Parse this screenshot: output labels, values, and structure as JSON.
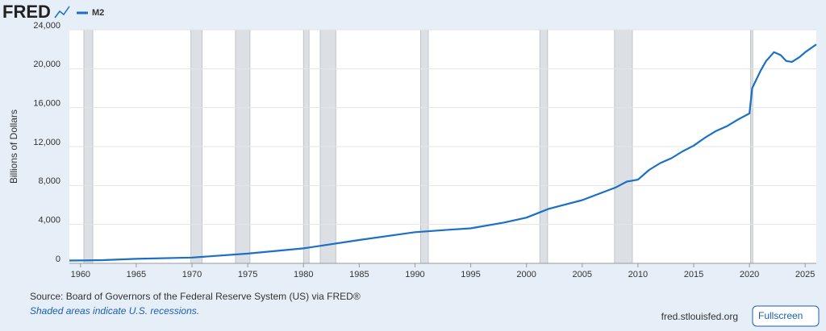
{
  "chart_data": {
    "type": "line",
    "logo": "FRED",
    "ylabel": "Billions of Dollars",
    "source": "Source: Board of Governors of the Federal Reserve System (US) via FRED®",
    "note": "Shaded areas indicate U.S. recessions.",
    "site": "fred.stlouisfed.org",
    "button": "Fullscreen",
    "x": [
      1959,
      1960,
      1962,
      1965,
      1970,
      1975,
      1980,
      1985,
      1990,
      1993,
      1995,
      1998,
      2000,
      2002,
      2005,
      2008,
      2009,
      2010,
      2011,
      2012,
      2013,
      2014,
      2015,
      2016,
      2017,
      2018,
      2019,
      2020,
      2020.25,
      2021,
      2021.5,
      2022.2,
      2022.8,
      2023.3,
      2023.8,
      2024.5,
      2025,
      2026
    ],
    "series": [
      {
        "name": "M2",
        "color": "#1a6fc7",
        "values": [
          290,
          300,
          335,
          460,
          600,
          1000,
          1540,
          2400,
          3200,
          3450,
          3600,
          4200,
          4700,
          5600,
          6500,
          7800,
          8400,
          8600,
          9600,
          10300,
          10800,
          11500,
          12100,
          12900,
          13600,
          14100,
          14800,
          15400,
          18000,
          19800,
          20800,
          21700,
          21400,
          20800,
          20700,
          21200,
          21700,
          22500
        ]
      }
    ],
    "recessions": [
      [
        1960.3,
        1961.1
      ],
      [
        1969.9,
        1970.9
      ],
      [
        1973.9,
        1975.2
      ],
      [
        1980.0,
        1980.5
      ],
      [
        1981.5,
        1982.9
      ],
      [
        1990.5,
        1991.2
      ],
      [
        2001.2,
        2001.9
      ],
      [
        2007.9,
        2009.5
      ],
      [
        2020.1,
        2020.3
      ]
    ],
    "xlim": [
      1959,
      2026
    ],
    "xticks": [
      1960,
      1965,
      1970,
      1975,
      1980,
      1985,
      1990,
      1995,
      2000,
      2005,
      2010,
      2015,
      2020,
      2025
    ],
    "ylim": [
      0,
      24000
    ],
    "yticks": [
      0,
      {
        "value": 4000,
        "label": "4,000"
      },
      {
        "value": 8000,
        "label": "8,000"
      },
      {
        "value": 12000,
        "label": "12,000"
      },
      {
        "value": 16000,
        "label": "16,000"
      },
      {
        "value": 20000,
        "label": "20,000"
      },
      {
        "value": 24000,
        "label": "24,000"
      }
    ],
    "grid": true
  }
}
